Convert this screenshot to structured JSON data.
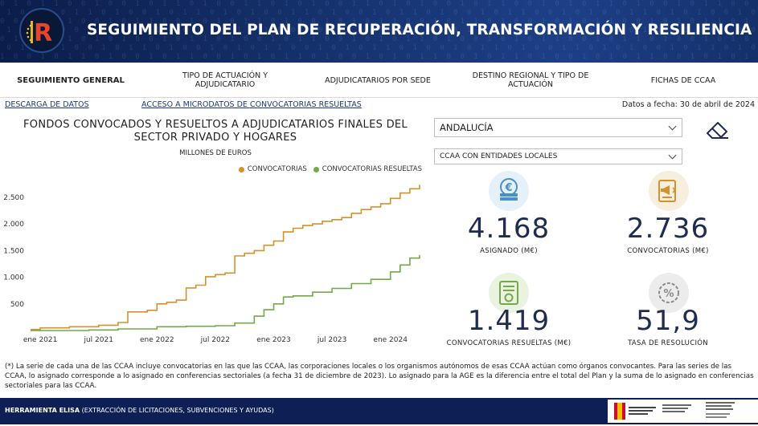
{
  "header": {
    "title": "SEGUIMIENTO DEL PLAN DE RECUPERACIÓN, TRANSFORMACIÓN Y RESILIENCIA",
    "logo_letter": "R"
  },
  "nav": {
    "tabs": [
      {
        "label": "SEGUIMIENTO GENERAL",
        "active": true
      },
      {
        "label": "TIPO DE ACTUACIÓN Y ADJUDICATARIO",
        "active": false
      },
      {
        "label": "ADJUDICATARIOS POR SEDE",
        "active": false
      },
      {
        "label": "DESTINO REGIONAL Y TIPO DE ACTUACIÓN",
        "active": false
      },
      {
        "label": "FICHAS DE CCAA",
        "active": false
      }
    ]
  },
  "links": {
    "download": "DESCARGA DE DATOS",
    "microdata": "ACCESO A MICRODATOS DE CONVOCATORIAS RESUELTAS"
  },
  "date_label": "Datos a fecha: 30 de abril de 2024",
  "chart_data": {
    "type": "line",
    "title": "FONDOS CONVOCADOS Y RESUELTOS A ADJUDICATARIOS FINALES DEL SECTOR PRIVADO Y HOGARES",
    "ylabel": "MILLONES DE EUROS",
    "legend_position": "top-right",
    "x_ticks": [
      "ene 2021",
      "jul 2021",
      "ene 2022",
      "jul 2022",
      "ene 2023",
      "jul 2023",
      "ene 2024"
    ],
    "y_ticks": [
      500,
      1000,
      1500,
      2000,
      2500
    ],
    "y_tick_labels": [
      "500",
      "1.000",
      "1.500",
      "2.000",
      "2.500"
    ],
    "xlim": [
      "2020-12",
      "2024-04"
    ],
    "ylim": [
      0,
      2800
    ],
    "grid": false,
    "series": [
      {
        "name": "CONVOCATORIAS",
        "color": "#d4922e",
        "x": [
          "2020-12",
          "2021-01",
          "2021-04",
          "2021-07",
          "2021-09",
          "2021-10",
          "2021-12",
          "2022-01",
          "2022-02",
          "2022-03",
          "2022-04",
          "2022-05",
          "2022-06",
          "2022-07",
          "2022-08",
          "2022-09",
          "2022-10",
          "2022-11",
          "2022-12",
          "2023-01",
          "2023-02",
          "2023-03",
          "2023-04",
          "2023-05",
          "2023-06",
          "2023-07",
          "2023-08",
          "2023-09",
          "2023-10",
          "2023-11",
          "2023-12",
          "2024-01",
          "2024-02",
          "2024-03",
          "2024-04"
        ],
        "y": [
          20,
          50,
          70,
          100,
          150,
          350,
          380,
          500,
          530,
          570,
          800,
          850,
          1010,
          1050,
          1080,
          1400,
          1450,
          1500,
          1600,
          1680,
          1850,
          1920,
          1970,
          2000,
          2050,
          2080,
          2120,
          2200,
          2270,
          2320,
          2380,
          2480,
          2580,
          2660,
          2736
        ]
      },
      {
        "name": "CONVOCATORIAS RESUELTAS",
        "color": "#74a84a",
        "x": [
          "2020-12",
          "2021-06",
          "2021-09",
          "2022-01",
          "2022-04",
          "2022-07",
          "2022-09",
          "2022-11",
          "2022-12",
          "2023-01",
          "2023-02",
          "2023-03",
          "2023-05",
          "2023-07",
          "2023-09",
          "2023-11",
          "2024-01",
          "2024-02",
          "2024-03",
          "2024-04"
        ],
        "y": [
          0,
          10,
          30,
          70,
          80,
          90,
          140,
          270,
          390,
          500,
          630,
          650,
          720,
          790,
          880,
          960,
          1100,
          1230,
          1360,
          1419
        ]
      }
    ]
  },
  "filters": {
    "region": "ANDALUCÍA",
    "scope": "CCAA CON ENTIDADES LOCALES"
  },
  "kpis": [
    {
      "value": "4.168",
      "label": "ASIGNADO (M€)",
      "icon": "coins-icon",
      "color": "#4a90c8"
    },
    {
      "value": "2.736",
      "label": "CONVOCATORIAS (M€)",
      "icon": "megaphone-document-icon",
      "color": "#d4922e"
    },
    {
      "value": "1.419",
      "label": "CONVOCATORIAS RESUELTAS (M€)",
      "icon": "certificate-icon",
      "color": "#74a84a"
    },
    {
      "value": "51,9",
      "label": "TASA DE RESOLUCIÓN",
      "icon": "percent-icon",
      "color": "#8a8a8a"
    }
  ],
  "footnote": "(*) La serie de cada una de las CCAA incluye convocatorias en las que las CCAA, las corporaciones locales o los organismos autónomos de esas CCAA actúan como órganos convocantes. Para las series de las CCAA, lo asignado corresponde a lo asignado en conferencias sectoriales (a fecha 31 de diciembre de 2023). Lo asignado para la AGE es la diferencia entre el total del Plan y la suma de lo asignado en conferencias sectoriales para las CCAA.",
  "footer": {
    "brand": "HERRAMIENTA ELISA",
    "description": "(EXTRACCIÓN DE LICITACIONES, SUBVENCIONES Y AYUDAS)"
  }
}
